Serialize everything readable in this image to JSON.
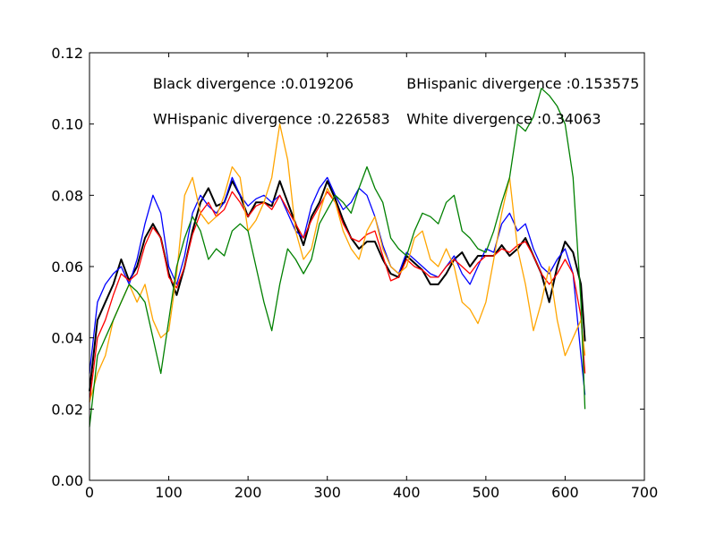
{
  "chart_data": {
    "type": "line",
    "title": "",
    "xlabel": "",
    "ylabel": "",
    "xlim": [
      0,
      700
    ],
    "ylim": [
      0.0,
      0.12
    ],
    "x_ticks": [
      0,
      100,
      200,
      300,
      400,
      500,
      600,
      700
    ],
    "x_tick_labels": [
      "0",
      "100",
      "200",
      "300",
      "400",
      "500",
      "600",
      "700"
    ],
    "y_ticks": [
      0.0,
      0.02,
      0.04,
      0.06,
      0.08,
      0.1,
      0.12
    ],
    "y_tick_labels": [
      "0.00",
      "0.02",
      "0.04",
      "0.06",
      "0.08",
      "0.10",
      "0.12"
    ],
    "grid": false,
    "annotations": [
      {
        "text": "Black divergence :0.019206",
        "x": 80,
        "y": 0.11
      },
      {
        "text": "BHispanic divergence :0.153575",
        "x": 400,
        "y": 0.11
      },
      {
        "text": "WHispanic divergence :0.226583",
        "x": 80,
        "y": 0.1
      },
      {
        "text": "White divergence :0.34063",
        "x": 400,
        "y": 0.1
      }
    ],
    "series": [
      {
        "color": "#000000",
        "x": [
          0,
          10,
          20,
          30,
          40,
          50,
          60,
          70,
          80,
          90,
          100,
          110,
          120,
          130,
          140,
          150,
          160,
          170,
          180,
          190,
          200,
          210,
          220,
          230,
          240,
          250,
          260,
          270,
          280,
          290,
          300,
          310,
          320,
          330,
          340,
          350,
          360,
          370,
          380,
          390,
          400,
          410,
          420,
          430,
          440,
          450,
          460,
          470,
          480,
          490,
          500,
          510,
          520,
          530,
          540,
          550,
          560,
          570,
          580,
          590,
          600,
          610,
          620,
          625
        ],
        "y": [
          0.025,
          0.045,
          0.05,
          0.055,
          0.062,
          0.056,
          0.06,
          0.068,
          0.072,
          0.068,
          0.058,
          0.052,
          0.06,
          0.07,
          0.078,
          0.082,
          0.077,
          0.078,
          0.084,
          0.08,
          0.074,
          0.078,
          0.078,
          0.077,
          0.084,
          0.078,
          0.072,
          0.066,
          0.074,
          0.078,
          0.084,
          0.079,
          0.073,
          0.068,
          0.065,
          0.067,
          0.067,
          0.062,
          0.058,
          0.057,
          0.063,
          0.061,
          0.059,
          0.055,
          0.055,
          0.058,
          0.062,
          0.064,
          0.06,
          0.063,
          0.063,
          0.063,
          0.066,
          0.063,
          0.065,
          0.068,
          0.063,
          0.058,
          0.05,
          0.06,
          0.067,
          0.064,
          0.055,
          0.039
        ]
      },
      {
        "color": "#0000ff",
        "x": [
          0,
          10,
          20,
          30,
          40,
          50,
          60,
          70,
          80,
          90,
          100,
          110,
          120,
          130,
          140,
          150,
          160,
          170,
          180,
          190,
          200,
          210,
          220,
          230,
          240,
          250,
          260,
          270,
          280,
          290,
          300,
          310,
          320,
          330,
          340,
          350,
          360,
          370,
          380,
          390,
          400,
          410,
          420,
          430,
          440,
          450,
          460,
          470,
          480,
          490,
          500,
          510,
          520,
          530,
          540,
          550,
          560,
          570,
          580,
          590,
          600,
          610,
          620,
          625
        ],
        "y": [
          0.03,
          0.05,
          0.055,
          0.058,
          0.06,
          0.055,
          0.062,
          0.072,
          0.08,
          0.075,
          0.06,
          0.055,
          0.063,
          0.075,
          0.08,
          0.077,
          0.075,
          0.078,
          0.085,
          0.08,
          0.077,
          0.079,
          0.08,
          0.078,
          0.08,
          0.075,
          0.07,
          0.068,
          0.077,
          0.082,
          0.085,
          0.08,
          0.076,
          0.078,
          0.082,
          0.08,
          0.074,
          0.066,
          0.06,
          0.058,
          0.064,
          0.062,
          0.06,
          0.058,
          0.057,
          0.06,
          0.063,
          0.058,
          0.055,
          0.06,
          0.065,
          0.064,
          0.072,
          0.075,
          0.07,
          0.072,
          0.065,
          0.06,
          0.058,
          0.062,
          0.065,
          0.058,
          0.035,
          0.024
        ]
      },
      {
        "color": "#ff0000",
        "x": [
          0,
          10,
          20,
          30,
          40,
          50,
          60,
          70,
          80,
          90,
          100,
          110,
          120,
          130,
          140,
          150,
          160,
          170,
          180,
          190,
          200,
          210,
          220,
          230,
          240,
          250,
          260,
          270,
          280,
          290,
          300,
          310,
          320,
          330,
          340,
          350,
          360,
          370,
          380,
          390,
          400,
          410,
          420,
          430,
          440,
          450,
          460,
          470,
          480,
          490,
          500,
          510,
          520,
          530,
          540,
          550,
          560,
          570,
          580,
          590,
          600,
          610,
          620,
          625
        ],
        "y": [
          0.022,
          0.04,
          0.045,
          0.052,
          0.058,
          0.056,
          0.058,
          0.066,
          0.071,
          0.068,
          0.057,
          0.054,
          0.06,
          0.069,
          0.075,
          0.078,
          0.074,
          0.076,
          0.081,
          0.078,
          0.074,
          0.077,
          0.078,
          0.076,
          0.08,
          0.076,
          0.072,
          0.068,
          0.073,
          0.077,
          0.081,
          0.078,
          0.072,
          0.068,
          0.067,
          0.069,
          0.07,
          0.063,
          0.056,
          0.057,
          0.062,
          0.06,
          0.059,
          0.057,
          0.057,
          0.06,
          0.062,
          0.06,
          0.058,
          0.061,
          0.063,
          0.063,
          0.065,
          0.064,
          0.066,
          0.067,
          0.063,
          0.058,
          0.055,
          0.058,
          0.062,
          0.058,
          0.046,
          0.03
        ]
      },
      {
        "color": "#ffa500",
        "x": [
          0,
          10,
          20,
          30,
          40,
          50,
          60,
          70,
          80,
          90,
          100,
          110,
          120,
          130,
          140,
          150,
          160,
          170,
          180,
          190,
          200,
          210,
          220,
          230,
          240,
          250,
          260,
          270,
          280,
          290,
          300,
          310,
          320,
          330,
          340,
          350,
          360,
          370,
          380,
          390,
          400,
          410,
          420,
          430,
          440,
          450,
          460,
          470,
          480,
          490,
          500,
          510,
          520,
          530,
          540,
          550,
          560,
          570,
          580,
          590,
          600,
          610,
          620,
          625
        ],
        "y": [
          0.022,
          0.03,
          0.035,
          0.045,
          0.05,
          0.055,
          0.05,
          0.055,
          0.045,
          0.04,
          0.042,
          0.058,
          0.08,
          0.085,
          0.075,
          0.072,
          0.074,
          0.08,
          0.088,
          0.085,
          0.07,
          0.073,
          0.078,
          0.085,
          0.1,
          0.09,
          0.07,
          0.062,
          0.065,
          0.075,
          0.082,
          0.078,
          0.07,
          0.065,
          0.062,
          0.07,
          0.074,
          0.065,
          0.06,
          0.058,
          0.06,
          0.068,
          0.07,
          0.062,
          0.06,
          0.065,
          0.06,
          0.05,
          0.048,
          0.044,
          0.05,
          0.062,
          0.075,
          0.085,
          0.065,
          0.055,
          0.042,
          0.05,
          0.06,
          0.045,
          0.035,
          0.04,
          0.045,
          0.035
        ]
      },
      {
        "color": "#008000",
        "x": [
          0,
          10,
          20,
          30,
          40,
          50,
          60,
          70,
          80,
          90,
          100,
          110,
          120,
          130,
          140,
          150,
          160,
          170,
          180,
          190,
          200,
          210,
          220,
          230,
          240,
          250,
          260,
          270,
          280,
          290,
          300,
          310,
          320,
          330,
          340,
          350,
          360,
          370,
          380,
          390,
          400,
          410,
          420,
          430,
          440,
          450,
          460,
          470,
          480,
          490,
          500,
          510,
          520,
          530,
          540,
          550,
          560,
          570,
          580,
          590,
          600,
          610,
          620,
          625
        ],
        "y": [
          0.015,
          0.035,
          0.04,
          0.045,
          0.05,
          0.055,
          0.053,
          0.05,
          0.04,
          0.03,
          0.045,
          0.06,
          0.068,
          0.074,
          0.07,
          0.062,
          0.065,
          0.063,
          0.07,
          0.072,
          0.07,
          0.06,
          0.05,
          0.042,
          0.055,
          0.065,
          0.062,
          0.058,
          0.062,
          0.072,
          0.076,
          0.08,
          0.078,
          0.075,
          0.082,
          0.088,
          0.082,
          0.078,
          0.068,
          0.065,
          0.063,
          0.07,
          0.075,
          0.074,
          0.072,
          0.078,
          0.08,
          0.07,
          0.068,
          0.065,
          0.064,
          0.07,
          0.078,
          0.085,
          0.1,
          0.098,
          0.102,
          0.11,
          0.108,
          0.105,
          0.1,
          0.085,
          0.05,
          0.02
        ]
      }
    ]
  }
}
